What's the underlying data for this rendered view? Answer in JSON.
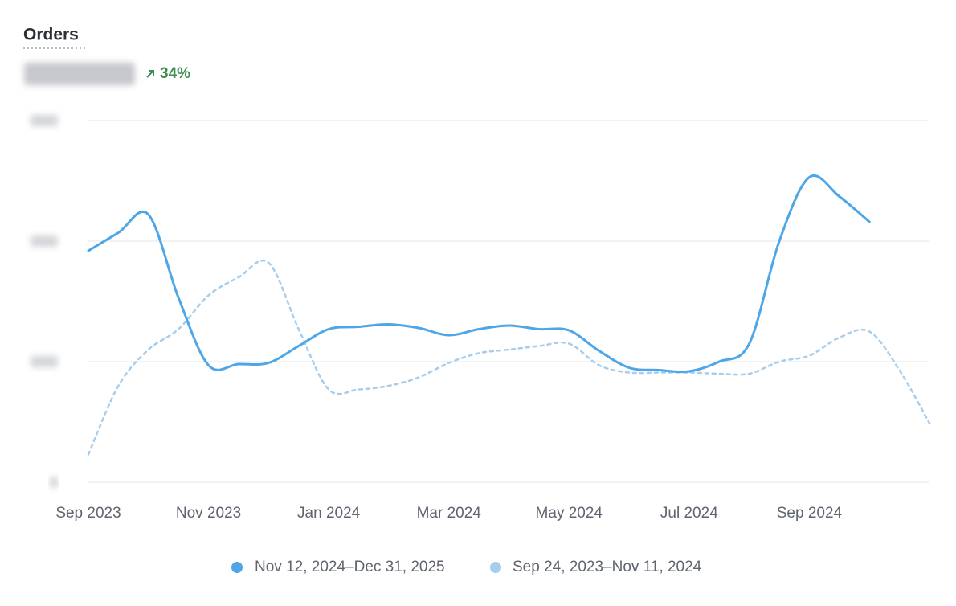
{
  "header": {
    "title": "Orders",
    "change": "34%"
  },
  "chart_data": {
    "type": "line",
    "categories": [
      "Sep 2023",
      null,
      null,
      null,
      "Nov 2023",
      null,
      null,
      null,
      "Jan 2024",
      null,
      null,
      null,
      "Mar 2024",
      null,
      null,
      null,
      "May 2024",
      null,
      null,
      null,
      "Jul 2024",
      null,
      null,
      null,
      "Sep 2024",
      null,
      null,
      null,
      null
    ],
    "ylim": [
      0,
      3
    ],
    "yticks": [
      0,
      1,
      2,
      3
    ],
    "grid": true,
    "series": [
      {
        "name": "Nov 12, 2024–Dec 31, 2025",
        "color": "#4ea6e6",
        "style": "solid",
        "values": [
          1.92,
          2.07,
          2.22,
          1.53,
          0.97,
          0.98,
          0.99,
          1.13,
          1.27,
          1.29,
          1.31,
          1.28,
          1.22,
          1.27,
          1.3,
          1.27,
          1.26,
          1.09,
          0.95,
          0.93,
          0.92,
          1.0,
          1.15,
          2.0,
          2.53,
          2.37,
          2.16,
          null,
          null
        ]
      },
      {
        "name": "Sep 24, 2023–Nov 11, 2024",
        "color": "#a7cdec",
        "style": "dashed",
        "values": [
          0.23,
          0.8,
          1.1,
          1.27,
          1.55,
          1.7,
          1.82,
          1.27,
          0.77,
          0.77,
          0.8,
          0.87,
          0.99,
          1.07,
          1.1,
          1.13,
          1.15,
          0.97,
          0.91,
          0.91,
          0.91,
          0.9,
          0.9,
          1.0,
          1.05,
          1.2,
          1.25,
          0.93,
          0.49
        ]
      }
    ]
  }
}
